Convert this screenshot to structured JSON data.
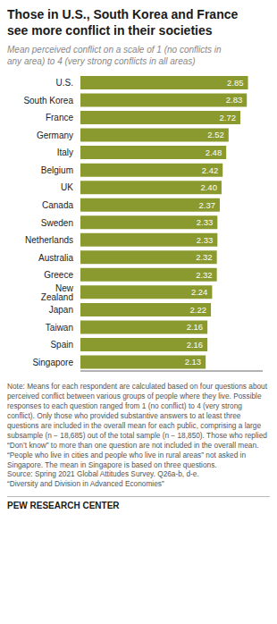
{
  "chart_data": {
    "type": "bar",
    "orientation": "horizontal",
    "title": "Those in U.S., South Korea and France\nsee more conflict in their societies",
    "subtitle": "Mean perceived conflict on a scale of 1 (no conflicts in\nany area) to 4 (very strong conflicts in all areas)",
    "categories": [
      "U.S.",
      "South Korea",
      "France",
      "Germany",
      "Italy",
      "Belgium",
      "UK",
      "Canada",
      "Sweden",
      "Netherlands",
      "Australia",
      "Greece",
      "New Zealand",
      "Japan",
      "Taiwan",
      "Spain",
      "Singapore"
    ],
    "values": [
      2.85,
      2.83,
      2.72,
      2.52,
      2.48,
      2.42,
      2.4,
      2.37,
      2.33,
      2.33,
      2.32,
      2.32,
      2.24,
      2.22,
      2.16,
      2.16,
      2.13
    ],
    "value_labels": [
      "2.85",
      "2.83",
      "2.72",
      "2.52",
      "2.48",
      "2.42",
      "2.40",
      "2.37",
      "2.33",
      "2.33",
      "2.32",
      "2.32",
      "2.24",
      "2.22",
      "2.16",
      "2.16",
      "2.13"
    ],
    "color": "#8b9a2f",
    "xlim": [
      0,
      3.1
    ],
    "data_labels": true,
    "tick_labels": "y",
    "annotations": [
      "Note: Means for each respondent are calculated based on four questions about perceived conflict between various groups of people where they live. Possible responses to each question ranged from 1 (no conflict) to 4 (very strong conflict). Only those who provided substantive answers to at least three questions are included in the overall mean for each public, comprising a large subsample (n − 18,685) out of the total sample (n − 18,850). Those who replied “Don’t know” to more than one question are not included in the overall mean. “People who live in cities and people who live in rural areas” not asked in Singapore. The mean in Singapore is based on three questions.\nSource: Spring 2021 Global Attitudes Survey. Q26a-b, d-e.\n“Diversity and Division in Advanced Economies”",
      "PEW RESEARCH CENTER"
    ]
  }
}
